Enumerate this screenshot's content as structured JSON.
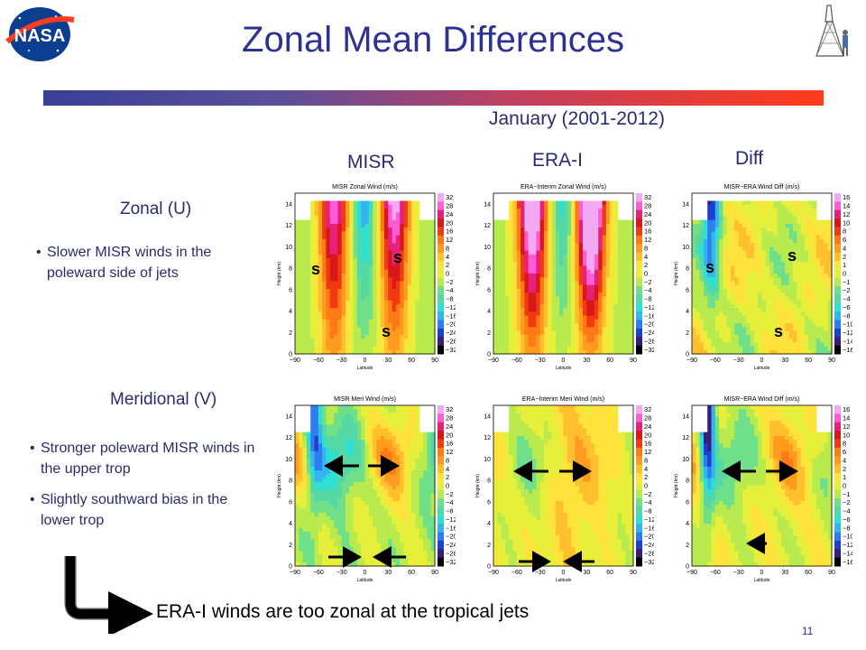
{
  "slide": {
    "title": "Zonal Mean Differences",
    "subtitle": "January (2001-2012)",
    "page_number": "11",
    "bottom_note": "ERA-I winds are too zonal at the tropical jets",
    "logo_text": "NASA"
  },
  "columns": {
    "misr": "MISR",
    "era": "ERA-I",
    "diff": "Diff"
  },
  "rows": [
    {
      "label": "Zonal (U)",
      "bullets": [
        "Slower MISR winds in the poleward side of jets"
      ]
    },
    {
      "label": "Meridional (V)",
      "bullets": [
        "Stronger poleward MISR winds in the upper trop",
        "Slightly southward bias in the lower trop"
      ]
    }
  ],
  "panels": [
    {
      "title": "MISR Zonal Wind (m/s)",
      "cb": [
        "32",
        "28",
        "24",
        "20",
        "16",
        "12",
        "8",
        "4",
        "2",
        "0",
        "−2",
        "−4",
        "−8",
        "−12",
        "−16",
        "−20",
        "−24",
        "−28",
        "−32"
      ]
    },
    {
      "title": "ERA−Interim Zonal Wind (m/s)",
      "cb": [
        "32",
        "28",
        "24",
        "20",
        "16",
        "12",
        "8",
        "4",
        "2",
        "0",
        "−2",
        "−4",
        "−8",
        "−12",
        "−16",
        "−20",
        "−24",
        "−28",
        "−32"
      ]
    },
    {
      "title": "MISR−ERA Wind Diff (m/s)",
      "cb": [
        "16",
        "14",
        "12",
        "10",
        "8",
        "6",
        "4",
        "2",
        "1",
        "0",
        "−1",
        "−2",
        "−4",
        "−6",
        "−8",
        "−10",
        "−12",
        "−14",
        "−16"
      ]
    },
    {
      "title": "MISR Meri Wind (m/s)",
      "cb": [
        "32",
        "28",
        "24",
        "20",
        "16",
        "12",
        "8",
        "4",
        "2",
        "0",
        "−2",
        "−4",
        "−8",
        "−12",
        "−16",
        "−20",
        "−24",
        "−28",
        "−32"
      ]
    },
    {
      "title": "ERA−Interim Meri Wind (m/s)",
      "cb": [
        "32",
        "28",
        "24",
        "20",
        "16",
        "12",
        "8",
        "4",
        "2",
        "0",
        "−2",
        "−4",
        "−8",
        "−12",
        "−16",
        "−20",
        "−24",
        "−28",
        "−32"
      ]
    },
    {
      "title": "MISR−ERA Wind Diff (m/s)",
      "cb": [
        "16",
        "14",
        "12",
        "10",
        "8",
        "6",
        "4",
        "2",
        "1",
        "0",
        "−1",
        "−2",
        "−4",
        "−6",
        "−8",
        "−10",
        "−12",
        "−14",
        "−16"
      ]
    }
  ],
  "axes": {
    "ylabel": "Height (km)",
    "xlabel": "Latitude",
    "yticks": [
      "0",
      "2",
      "4",
      "6",
      "8",
      "10",
      "12",
      "14"
    ],
    "xticks": [
      "−90",
      "−60",
      "−30",
      "0",
      "30",
      "60",
      "90"
    ]
  },
  "colors": {
    "title": "#2d3192",
    "text": "#2b2b6e"
  },
  "marks": {
    "s": "s"
  }
}
